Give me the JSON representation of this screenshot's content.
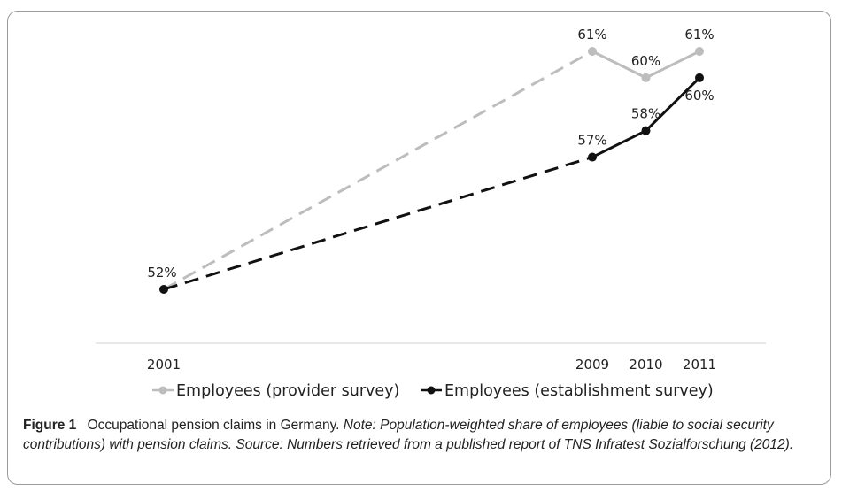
{
  "chart_data": {
    "type": "line",
    "x": [
      "2001",
      "2009",
      "2010",
      "2011"
    ],
    "x_numeric": [
      2001,
      2009,
      2010,
      2011
    ],
    "ylim": [
      50,
      62
    ],
    "grid": false,
    "legend_position": "bottom",
    "series": [
      {
        "name": "Employees (provider survey)",
        "color": "#bdbdbd",
        "values": [
          52,
          61,
          60,
          61
        ],
        "labels": [
          "52%",
          "61%",
          "60%",
          "61%"
        ],
        "dashed_first_segment": true
      },
      {
        "name": "Employees (establishment survey)",
        "color": "#111111",
        "values": [
          52,
          57,
          58,
          60
        ],
        "labels": [
          "",
          "57%",
          "58%",
          "60%"
        ],
        "dashed_first_segment": true
      }
    ]
  },
  "caption": {
    "label": "Figure 1",
    "title": "Occupational pension claims in Germany.",
    "note": "Note: Population-weighted share of employees (liable to social security contributions) with pension claims. Source: Numbers retrieved from a published report of TNS Infratest Sozialforschung (2012)."
  }
}
